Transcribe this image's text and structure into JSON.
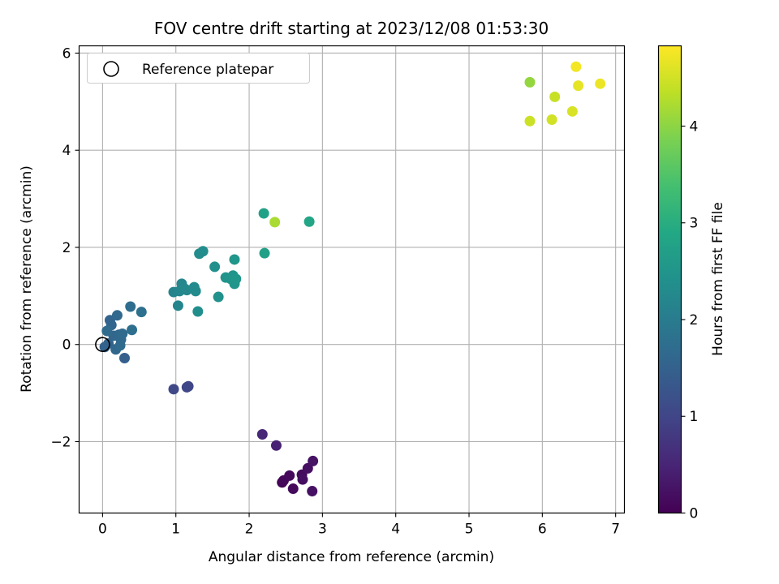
{
  "chart_data": {
    "type": "scatter",
    "title": "FOV centre drift starting at 2023/12/08 01:53:30",
    "xlabel": "Angular distance from reference (arcmin)",
    "ylabel": "Rotation from reference (arcmin)",
    "xlim": [
      -0.32,
      7.12
    ],
    "ylim": [
      -3.47,
      6.15
    ],
    "xticks": [
      0,
      1,
      2,
      3,
      4,
      5,
      6,
      7
    ],
    "xtick_labels": [
      "0",
      "1",
      "2",
      "3",
      "4",
      "5",
      "6",
      "7"
    ],
    "yticks": [
      -2,
      0,
      2,
      4,
      6
    ],
    "ytick_labels": [
      "−2",
      "0",
      "2",
      "4",
      "6"
    ],
    "grid": true,
    "legend": {
      "placement": "top-left",
      "entries": [
        "Reference platepar"
      ]
    },
    "reference_point": {
      "x": 0,
      "y": 0,
      "label": "Reference platepar"
    },
    "colorbar": {
      "label": "Hours from first FF file",
      "colormap": "viridis",
      "range": [
        0,
        4.83
      ],
      "ticks": [
        0,
        1,
        2,
        3,
        4
      ],
      "tick_labels": [
        "0",
        "1",
        "2",
        "3",
        "4"
      ]
    },
    "points": [
      {
        "x": 2.45,
        "y": -2.84,
        "h": 0.05
      },
      {
        "x": 2.47,
        "y": -2.8,
        "h": 0.08
      },
      {
        "x": 2.55,
        "y": -2.7,
        "h": 0.1
      },
      {
        "x": 2.6,
        "y": -2.97,
        "h": 0.12
      },
      {
        "x": 2.72,
        "y": -2.68,
        "h": 0.15
      },
      {
        "x": 2.73,
        "y": -2.78,
        "h": 0.18
      },
      {
        "x": 2.8,
        "y": -2.55,
        "h": 0.2
      },
      {
        "x": 2.86,
        "y": -3.02,
        "h": 0.22
      },
      {
        "x": 2.87,
        "y": -2.4,
        "h": 0.25
      },
      {
        "x": 2.37,
        "y": -2.08,
        "h": 0.45
      },
      {
        "x": 2.18,
        "y": -1.85,
        "h": 0.55
      },
      {
        "x": 1.15,
        "y": -0.88,
        "h": 1.0
      },
      {
        "x": 1.17,
        "y": -0.86,
        "h": 1.02
      },
      {
        "x": 0.97,
        "y": -0.92,
        "h": 1.05
      },
      {
        "x": 0.3,
        "y": -0.28,
        "h": 1.45
      },
      {
        "x": 0.03,
        "y": -0.05,
        "h": 1.5
      },
      {
        "x": 0.08,
        "y": 0.02,
        "h": 1.52
      },
      {
        "x": 0.1,
        "y": 0.5,
        "h": 1.55
      },
      {
        "x": 0.12,
        "y": 0.4,
        "h": 1.56
      },
      {
        "x": 0.15,
        "y": 0.18,
        "h": 1.58
      },
      {
        "x": 0.18,
        "y": -0.1,
        "h": 1.6
      },
      {
        "x": 0.2,
        "y": 0.6,
        "h": 1.62
      },
      {
        "x": 0.22,
        "y": 0.2,
        "h": 1.63
      },
      {
        "x": 0.25,
        "y": 0.1,
        "h": 1.65
      },
      {
        "x": 0.27,
        "y": 0.22,
        "h": 1.66
      },
      {
        "x": 0.24,
        "y": -0.02,
        "h": 1.67
      },
      {
        "x": 0.06,
        "y": 0.28,
        "h": 1.68
      },
      {
        "x": 0.38,
        "y": 0.78,
        "h": 1.72
      },
      {
        "x": 0.4,
        "y": 0.3,
        "h": 1.75
      },
      {
        "x": 0.53,
        "y": 0.67,
        "h": 1.78
      },
      {
        "x": 0.97,
        "y": 1.08,
        "h": 2.15
      },
      {
        "x": 1.03,
        "y": 0.8,
        "h": 2.18
      },
      {
        "x": 1.05,
        "y": 1.1,
        "h": 2.2
      },
      {
        "x": 1.08,
        "y": 1.25,
        "h": 2.22
      },
      {
        "x": 1.12,
        "y": 1.15,
        "h": 2.24
      },
      {
        "x": 1.15,
        "y": 1.12,
        "h": 2.25
      },
      {
        "x": 1.25,
        "y": 1.18,
        "h": 2.28
      },
      {
        "x": 1.27,
        "y": 1.1,
        "h": 2.3
      },
      {
        "x": 1.32,
        "y": 1.87,
        "h": 2.32
      },
      {
        "x": 1.37,
        "y": 1.92,
        "h": 2.34
      },
      {
        "x": 1.3,
        "y": 0.68,
        "h": 2.36
      },
      {
        "x": 1.53,
        "y": 1.6,
        "h": 2.4
      },
      {
        "x": 1.58,
        "y": 0.98,
        "h": 2.42
      },
      {
        "x": 1.68,
        "y": 1.38,
        "h": 2.45
      },
      {
        "x": 1.75,
        "y": 1.35,
        "h": 2.47
      },
      {
        "x": 1.78,
        "y": 1.42,
        "h": 2.48
      },
      {
        "x": 1.8,
        "y": 1.25,
        "h": 2.5
      },
      {
        "x": 1.8,
        "y": 1.75,
        "h": 2.52
      },
      {
        "x": 1.82,
        "y": 1.35,
        "h": 2.53
      },
      {
        "x": 2.21,
        "y": 1.88,
        "h": 2.7
      },
      {
        "x": 2.2,
        "y": 2.7,
        "h": 2.75
      },
      {
        "x": 2.82,
        "y": 2.53,
        "h": 2.85
      },
      {
        "x": 2.35,
        "y": 2.52,
        "h": 4.2
      },
      {
        "x": 5.83,
        "y": 5.4,
        "h": 4.05
      },
      {
        "x": 5.83,
        "y": 4.6,
        "h": 4.45
      },
      {
        "x": 6.13,
        "y": 4.63,
        "h": 4.5
      },
      {
        "x": 6.17,
        "y": 5.1,
        "h": 4.42
      },
      {
        "x": 6.41,
        "y": 4.8,
        "h": 4.55
      },
      {
        "x": 6.46,
        "y": 5.72,
        "h": 4.75
      },
      {
        "x": 6.49,
        "y": 5.33,
        "h": 4.65
      },
      {
        "x": 6.79,
        "y": 5.37,
        "h": 4.7
      }
    ]
  }
}
